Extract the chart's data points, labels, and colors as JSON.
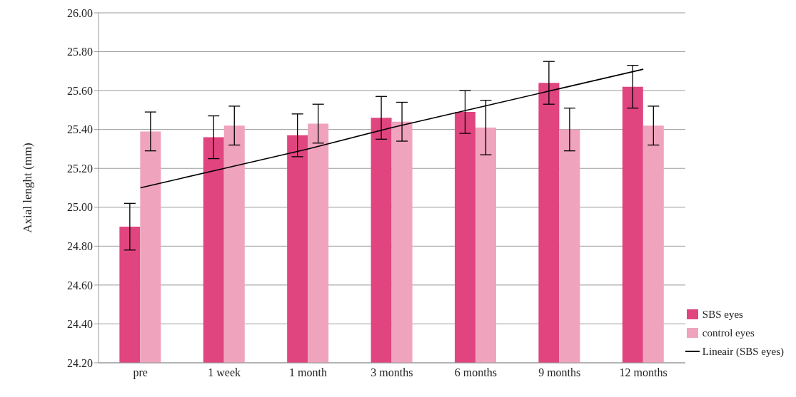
{
  "chart_data": {
    "type": "bar",
    "ylabel": "Axial lenght (mm)",
    "categories": [
      "pre",
      "1 week",
      "1 month",
      "3 months",
      "6 months",
      "9 months",
      "12 months"
    ],
    "series": [
      {
        "name": "SBS eyes",
        "color": "#e0457f",
        "values": [
          24.9,
          25.36,
          25.37,
          25.46,
          25.49,
          25.64,
          25.62
        ],
        "errors": [
          0.12,
          0.11,
          0.11,
          0.11,
          0.11,
          0.11,
          0.11
        ]
      },
      {
        "name": "control eyes",
        "color": "#f0a3bd",
        "values": [
          25.39,
          25.42,
          25.43,
          25.44,
          25.41,
          25.4,
          25.42
        ],
        "errors": [
          0.1,
          0.1,
          0.1,
          0.1,
          0.14,
          0.11,
          0.1
        ]
      },
      {
        "name": "Lineair (SBS eyes)",
        "type": "line",
        "color": "#000000",
        "marker": "none",
        "values": [
          25.1,
          25.2,
          25.3,
          25.41,
          25.51,
          25.61,
          25.71
        ]
      }
    ],
    "ylim": [
      24.2,
      26.0
    ],
    "yticks": [
      {
        "value": 24.2,
        "label": "24.20"
      },
      {
        "value": 24.4,
        "label": "24.40"
      },
      {
        "value": 24.6,
        "label": "24.60"
      },
      {
        "value": 24.8,
        "label": "24.80"
      },
      {
        "value": 25.0,
        "label": "25.00"
      },
      {
        "value": 25.2,
        "label": "25.20"
      },
      {
        "value": 25.4,
        "label": "25.40"
      },
      {
        "value": 25.6,
        "label": "25.60"
      },
      {
        "value": 25.8,
        "label": "25.80"
      },
      {
        "value": 26.0,
        "label": "26.00"
      }
    ],
    "grid": "y",
    "legend": "right"
  }
}
